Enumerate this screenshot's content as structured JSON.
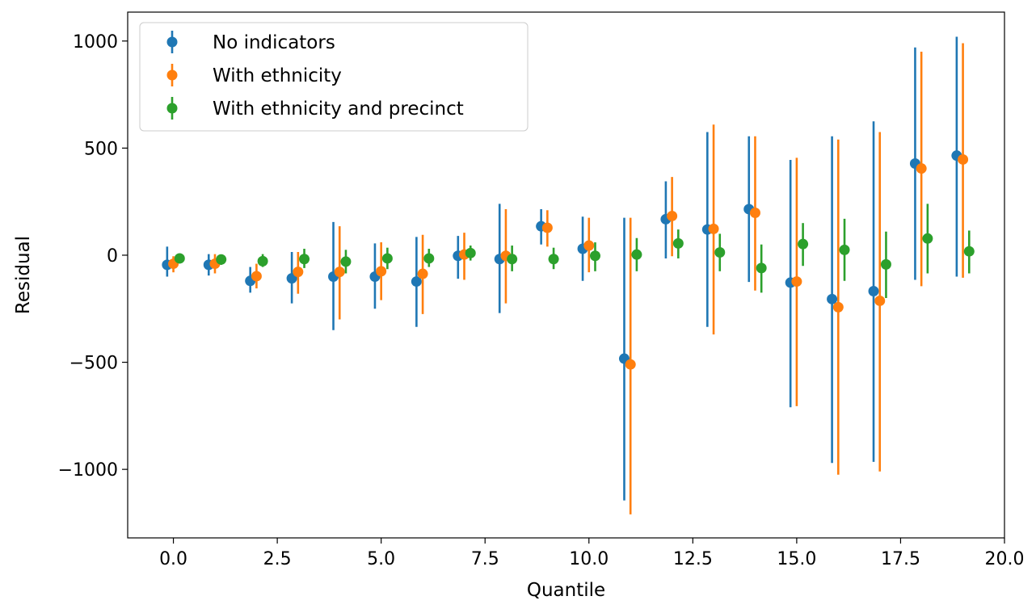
{
  "chart_data": {
    "type": "scatter",
    "title": "",
    "xlabel": "Quantile",
    "ylabel": "Residual",
    "xlim": [
      -1.1,
      20.0
    ],
    "ylim": [
      -1320,
      1135
    ],
    "xticks": [
      0.0,
      2.5,
      5.0,
      7.5,
      10.0,
      12.5,
      15.0,
      17.5,
      20.0
    ],
    "xtick_labels": [
      "0.0",
      "2.5",
      "5.0",
      "7.5",
      "10.0",
      "12.5",
      "15.0",
      "17.5",
      "20.0"
    ],
    "yticks": [
      -1000,
      -500,
      0,
      500,
      1000
    ],
    "ytick_labels": [
      "−1000",
      "−500",
      "0",
      "500",
      "1000"
    ],
    "grid": false,
    "legend_position": "top-left",
    "series": [
      {
        "name": "No indicators",
        "color": "#1f77b4",
        "x": [
          -0.15,
          0.85,
          1.85,
          2.85,
          3.85,
          4.85,
          5.85,
          6.85,
          7.85,
          8.85,
          9.85,
          10.85,
          11.85,
          12.85,
          13.85,
          14.85,
          15.85,
          16.85,
          17.85,
          18.85
        ],
        "y": [
          -45,
          -45,
          -120,
          -108,
          -100,
          -100,
          -123,
          -3,
          -18,
          135,
          30,
          -483,
          168,
          120,
          215,
          -128,
          -205,
          -168,
          428,
          465
        ],
        "yerr_low": [
          -100,
          -95,
          -175,
          -225,
          -350,
          -250,
          -335,
          -110,
          -270,
          50,
          -120,
          -1145,
          -15,
          -335,
          -125,
          -710,
          -970,
          -965,
          -115,
          -100
        ],
        "yerr_high": [
          40,
          5,
          -55,
          15,
          155,
          55,
          85,
          90,
          240,
          215,
          180,
          175,
          345,
          575,
          555,
          445,
          555,
          625,
          970,
          1020
        ]
      },
      {
        "name": "With ethnicity",
        "color": "#ff7f0e",
        "x": [
          0.0,
          1.0,
          2.0,
          3.0,
          4.0,
          5.0,
          6.0,
          7.0,
          8.0,
          9.0,
          10.0,
          11.0,
          12.0,
          13.0,
          14.0,
          15.0,
          16.0,
          17.0,
          18.0,
          19.0
        ],
        "y": [
          -40,
          -40,
          -98,
          -78,
          -78,
          -75,
          -87,
          3,
          -3,
          128,
          45,
          -510,
          183,
          123,
          198,
          -123,
          -243,
          -213,
          405,
          447
        ],
        "yerr_low": [
          -80,
          -85,
          -155,
          -180,
          -300,
          -210,
          -275,
          -115,
          -225,
          40,
          -80,
          -1210,
          -5,
          -370,
          -165,
          -705,
          -1025,
          -1010,
          -145,
          -105
        ],
        "yerr_high": [
          -5,
          5,
          -40,
          15,
          135,
          60,
          95,
          105,
          215,
          210,
          175,
          175,
          365,
          610,
          555,
          455,
          540,
          575,
          950,
          990
        ]
      },
      {
        "name": "With ethnicity and precinct",
        "color": "#2ca02c",
        "x": [
          0.15,
          1.15,
          2.15,
          3.15,
          4.15,
          5.15,
          6.15,
          7.15,
          8.15,
          9.15,
          10.15,
          11.15,
          12.15,
          13.15,
          14.15,
          15.15,
          16.15,
          17.15,
          18.15,
          19.15
        ],
        "y": [
          -15,
          -20,
          -28,
          -18,
          -30,
          -15,
          -15,
          10,
          -18,
          -18,
          -3,
          3,
          55,
          13,
          -60,
          52,
          25,
          -43,
          78,
          18
        ],
        "yerr_low": [
          -25,
          -45,
          -55,
          -60,
          -85,
          -65,
          -55,
          -25,
          -75,
          -65,
          -75,
          -75,
          -15,
          -75,
          -175,
          -50,
          -120,
          -200,
          -85,
          -85
        ],
        "yerr_high": [
          0,
          0,
          5,
          30,
          25,
          35,
          30,
          45,
          45,
          35,
          60,
          80,
          120,
          100,
          50,
          150,
          170,
          110,
          240,
          115
        ]
      }
    ]
  }
}
